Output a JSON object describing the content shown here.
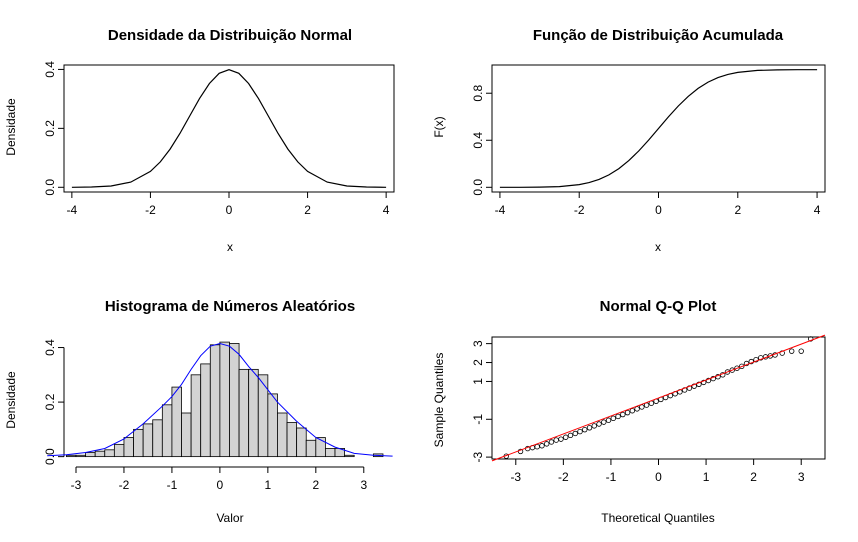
{
  "chart_data": [
    {
      "type": "line",
      "title": "Densidade da Distribuição Normal",
      "xlabel": "x",
      "ylabel": "Densidade",
      "xlim": [
        -4,
        4
      ],
      "ylim": [
        0,
        0.4
      ],
      "xticks": [
        -4,
        -2,
        0,
        2,
        4
      ],
      "yticks": [
        0.0,
        0.2,
        0.4
      ],
      "xtick_labels": [
        "-4",
        "-2",
        "0",
        "2",
        "4"
      ],
      "ytick_labels": [
        "0.0",
        "0.2",
        "0.4"
      ],
      "line_color": "#000000",
      "x": [
        -4,
        -3.5,
        -3,
        -2.5,
        -2,
        -1.75,
        -1.5,
        -1.25,
        -1,
        -0.75,
        -0.5,
        -0.25,
        0,
        0.25,
        0.5,
        0.75,
        1,
        1.25,
        1.5,
        1.75,
        2,
        2.5,
        3,
        3.5,
        4
      ],
      "y": [
        0.0001,
        0.0009,
        0.0044,
        0.0175,
        0.054,
        0.0863,
        0.1295,
        0.1826,
        0.242,
        0.3011,
        0.3521,
        0.3867,
        0.3989,
        0.3867,
        0.3521,
        0.3011,
        0.242,
        0.1826,
        0.1295,
        0.0863,
        0.054,
        0.0175,
        0.0044,
        0.0009,
        0.0001
      ]
    },
    {
      "type": "line",
      "title": "Função de Distribuição Acumulada",
      "xlabel": "x",
      "ylabel": "F(x)",
      "xlim": [
        -4,
        4
      ],
      "ylim": [
        0,
        1
      ],
      "xticks": [
        -4,
        -2,
        0,
        2,
        4
      ],
      "yticks": [
        0.0,
        0.4,
        0.8
      ],
      "xtick_labels": [
        "-4",
        "-2",
        "0",
        "2",
        "4"
      ],
      "ytick_labels": [
        "0.0",
        "0.4",
        "0.8"
      ],
      "line_color": "#000000",
      "x": [
        -4,
        -3.5,
        -3,
        -2.5,
        -2,
        -1.75,
        -1.5,
        -1.25,
        -1,
        -0.75,
        -0.5,
        -0.25,
        0,
        0.25,
        0.5,
        0.75,
        1,
        1.25,
        1.5,
        1.75,
        2,
        2.5,
        3,
        3.5,
        4
      ],
      "y": [
        3e-05,
        0.0002,
        0.0013,
        0.0062,
        0.0228,
        0.0401,
        0.0668,
        0.1056,
        0.1587,
        0.2266,
        0.3085,
        0.4013,
        0.5,
        0.5987,
        0.6915,
        0.7734,
        0.8413,
        0.8944,
        0.9332,
        0.9599,
        0.9772,
        0.9938,
        0.9987,
        0.9998,
        1.0
      ]
    },
    {
      "type": "bar",
      "title": "Histograma de Números Aleatórios",
      "xlabel": "Valor",
      "ylabel": "Densidade",
      "xlim": [
        -3.3,
        3.6
      ],
      "ylim": [
        0,
        0.42
      ],
      "xticks": [
        -3,
        -2,
        -1,
        0,
        1,
        2,
        3
      ],
      "yticks": [
        0.0,
        0.2,
        0.4
      ],
      "xtick_labels": [
        "-3",
        "-2",
        "-1",
        "0",
        "1",
        "2",
        "3"
      ],
      "ytick_labels": [
        "0.0",
        "0.2",
        "0.4"
      ],
      "bar_color": "#d3d3d3",
      "density_color": "#0000ff",
      "bin_edges": [
        -3.2,
        -3.0,
        -2.8,
        -2.6,
        -2.4,
        -2.2,
        -2.0,
        -1.8,
        -1.6,
        -1.4,
        -1.2,
        -1.0,
        -0.8,
        -0.6,
        -0.4,
        -0.2,
        0.0,
        0.2,
        0.4,
        0.6,
        0.8,
        1.0,
        1.2,
        1.4,
        1.6,
        1.8,
        2.0,
        2.2,
        2.4,
        2.6,
        2.8,
        3.0,
        3.2,
        3.4
      ],
      "values": [
        0.005,
        0.005,
        0.015,
        0.02,
        0.025,
        0.045,
        0.07,
        0.1,
        0.12,
        0.135,
        0.19,
        0.255,
        0.16,
        0.3,
        0.34,
        0.41,
        0.42,
        0.415,
        0.32,
        0.32,
        0.3,
        0.23,
        0.16,
        0.125,
        0.105,
        0.06,
        0.07,
        0.03,
        0.03,
        0.005,
        0.0,
        0.0,
        0.01
      ],
      "density_x": [
        -3.6,
        -3.2,
        -2.8,
        -2.4,
        -2.0,
        -1.6,
        -1.2,
        -1.0,
        -0.8,
        -0.6,
        -0.4,
        -0.2,
        0.0,
        0.2,
        0.4,
        0.6,
        0.8,
        1.0,
        1.2,
        1.6,
        2.0,
        2.4,
        2.8,
        3.2,
        3.6
      ],
      "density_y": [
        0.003,
        0.007,
        0.015,
        0.03,
        0.065,
        0.12,
        0.185,
        0.22,
        0.265,
        0.32,
        0.37,
        0.405,
        0.415,
        0.405,
        0.375,
        0.33,
        0.29,
        0.245,
        0.2,
        0.13,
        0.07,
        0.035,
        0.012,
        0.005,
        0.002
      ]
    },
    {
      "type": "scatter",
      "title": "Normal Q-Q Plot",
      "xlabel": "Theoretical Quantiles",
      "ylabel": "Sample Quantiles",
      "xlim": [
        -3.5,
        3.5
      ],
      "ylim": [
        -3.1,
        3.4
      ],
      "xticks": [
        -3,
        -2,
        -1,
        0,
        1,
        2,
        3
      ],
      "yticks": [
        -3,
        -1,
        1,
        2,
        3
      ],
      "xtick_labels": [
        "-3",
        "-2",
        "-1",
        "0",
        "1",
        "2",
        "3"
      ],
      "ytick_labels": [
        "-3",
        "-1",
        "1",
        "2",
        "3"
      ],
      "point_color": "#000000",
      "line_color": "#ff0000",
      "reference_line": [
        [
          -3.5,
          -3.2
        ],
        [
          3.5,
          3.45
        ]
      ],
      "x": [
        -3.2,
        -2.9,
        -2.75,
        -2.65,
        -2.55,
        -2.45,
        -2.35,
        -2.25,
        -2.15,
        -2.05,
        -1.95,
        -1.85,
        -1.75,
        -1.65,
        -1.55,
        -1.45,
        -1.35,
        -1.25,
        -1.15,
        -1.05,
        -0.95,
        -0.85,
        -0.75,
        -0.65,
        -0.55,
        -0.45,
        -0.35,
        -0.25,
        -0.15,
        -0.05,
        0.05,
        0.15,
        0.25,
        0.35,
        0.45,
        0.55,
        0.65,
        0.75,
        0.85,
        0.95,
        1.05,
        1.15,
        1.25,
        1.35,
        1.45,
        1.55,
        1.65,
        1.75,
        1.85,
        1.95,
        2.05,
        2.15,
        2.25,
        2.35,
        2.45,
        2.6,
        2.8,
        3.0,
        3.2
      ],
      "y": [
        -2.95,
        -2.7,
        -2.55,
        -2.5,
        -2.45,
        -2.4,
        -2.3,
        -2.2,
        -2.1,
        -2.05,
        -1.95,
        -1.85,
        -1.75,
        -1.65,
        -1.55,
        -1.45,
        -1.35,
        -1.25,
        -1.15,
        -1.05,
        -0.95,
        -0.85,
        -0.75,
        -0.65,
        -0.55,
        -0.45,
        -0.35,
        -0.25,
        -0.15,
        -0.05,
        0.05,
        0.15,
        0.25,
        0.35,
        0.45,
        0.55,
        0.65,
        0.75,
        0.85,
        0.95,
        1.05,
        1.15,
        1.25,
        1.35,
        1.5,
        1.6,
        1.7,
        1.8,
        1.95,
        2.05,
        2.15,
        2.25,
        2.3,
        2.35,
        2.4,
        2.5,
        2.6,
        2.6,
        3.25
      ]
    }
  ]
}
